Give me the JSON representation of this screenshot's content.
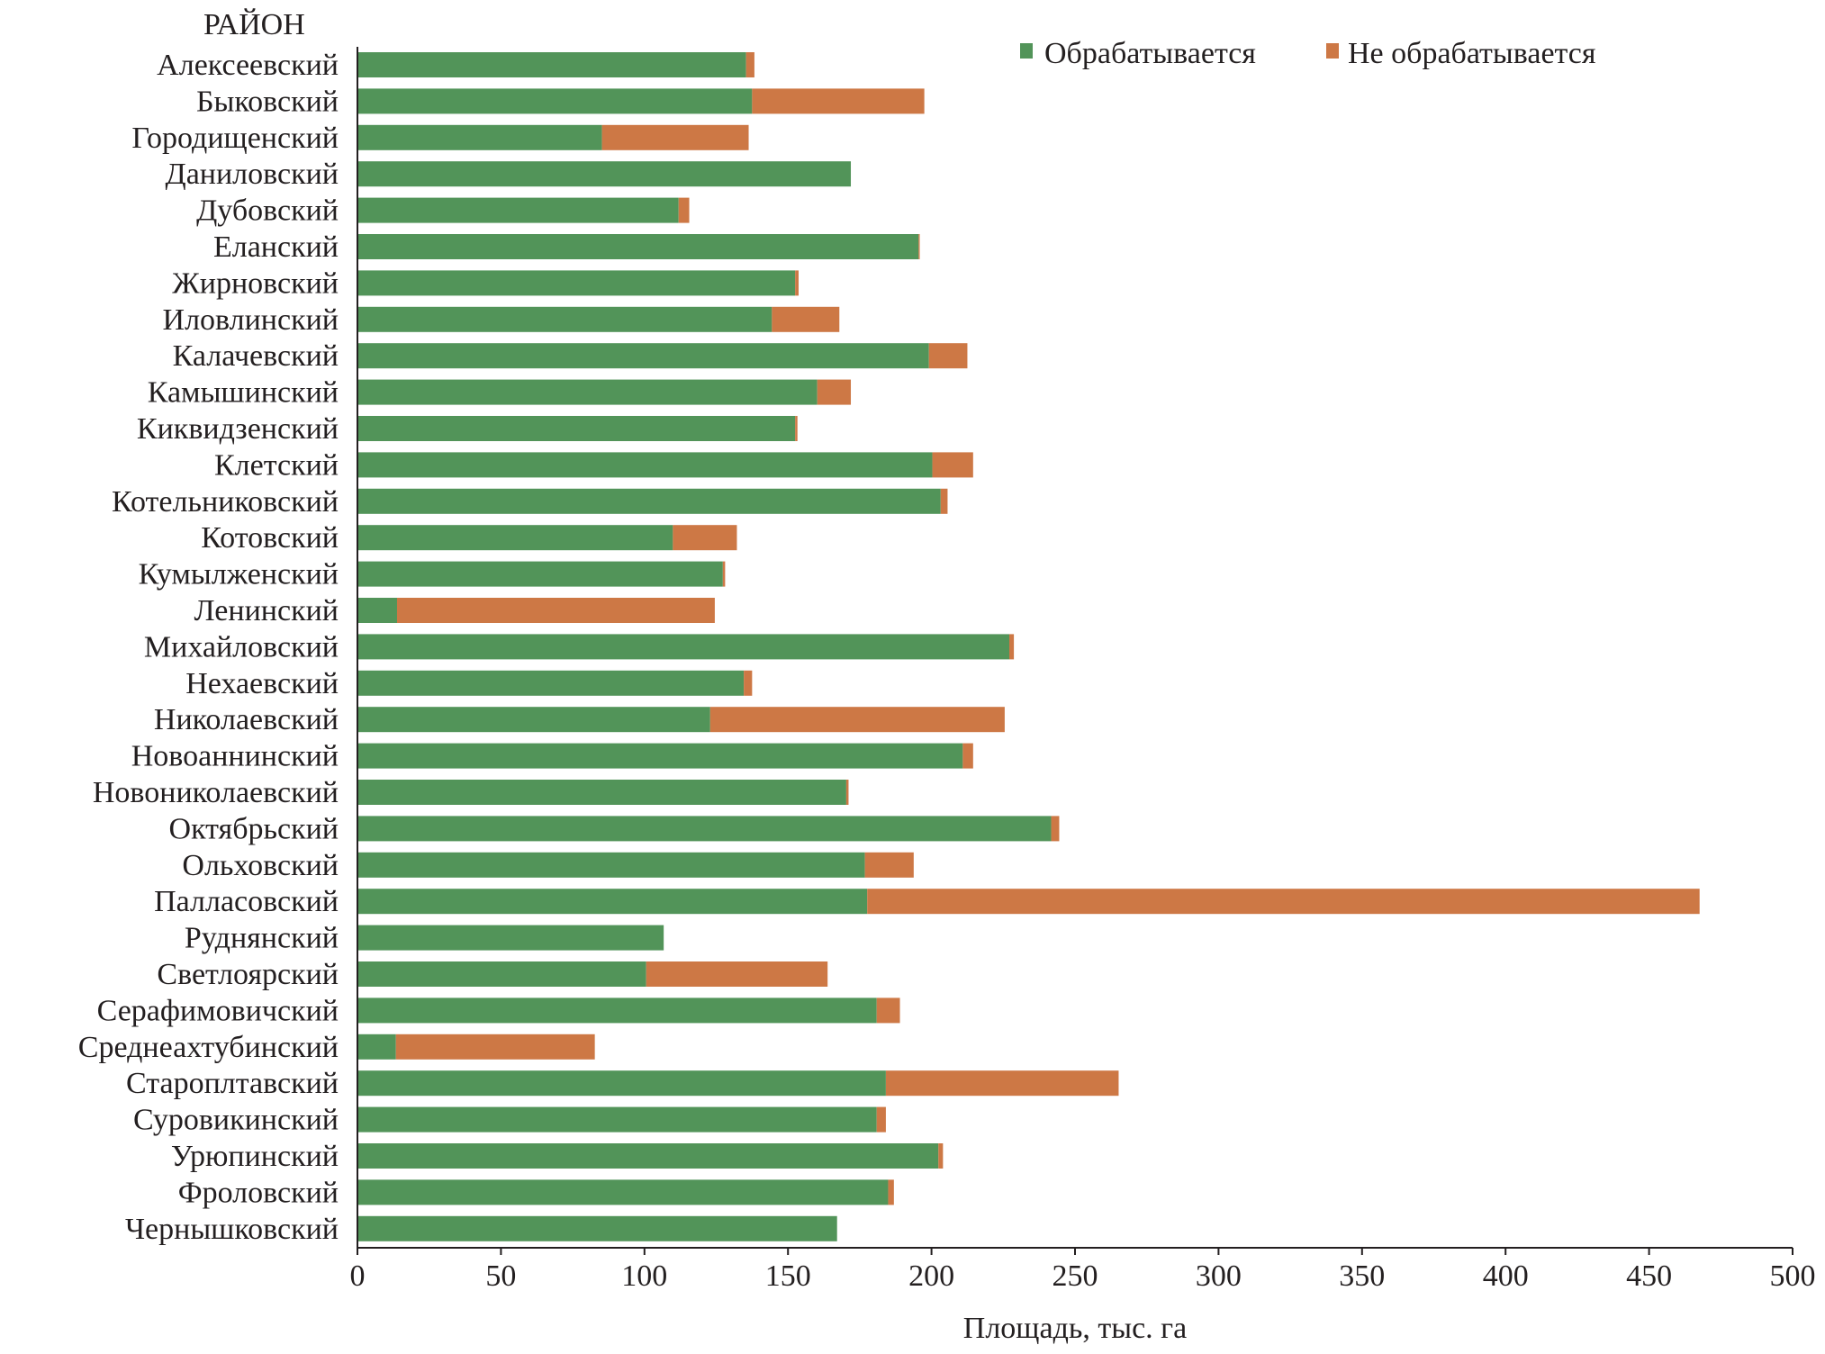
{
  "chart_data": {
    "type": "bar",
    "orientation": "horizontal",
    "stacked": true,
    "title": "",
    "ylabel": "РАЙОН",
    "xlabel": "Площадь, тыс. га",
    "xlim": [
      0,
      500
    ],
    "xticks": [
      0,
      50,
      100,
      150,
      200,
      250,
      300,
      350,
      400,
      450,
      500
    ],
    "grid": false,
    "legend_position": "top-right",
    "categories": [
      "Алексеевский",
      "Быковский",
      "Городищенский",
      "Даниловский",
      "Дубовский",
      "Еланский",
      "Жирновский",
      "Иловлинский",
      "Калачевский",
      "Камышинский",
      "Киквидзенский",
      "Клетский",
      "Котельниковский",
      "Котовский",
      "Кумылженский",
      "Ленинский",
      "Михайловский",
      "Нехаевский",
      "Николаевский",
      "Новоаннинский",
      "Новониколаевский",
      "Октябрьский",
      "Ольховский",
      "Палласовский",
      "Руднянский",
      "Светлоярский",
      "Серафимовичский",
      "Среднеахтубинский",
      "Староплтавский",
      "Суровикинский",
      "Урюпинский",
      "Фроловский",
      "Чернышковский"
    ],
    "series": [
      {
        "name": "Обрабатывается",
        "color": "#529459",
        "values": [
          135.4,
          137.5,
          85.2,
          171.9,
          111.9,
          195.5,
          152.5,
          144.4,
          199.1,
          160.2,
          152.5,
          200.3,
          203.2,
          109.9,
          127.3,
          13.8,
          227.1,
          134.6,
          122.9,
          210.9,
          170.3,
          241.7,
          176.8,
          177.6,
          106.7,
          100.6,
          180.9,
          13.4,
          184.1,
          180.9,
          202.4,
          184.9,
          167.1
        ]
      },
      {
        "name": "Не обрабатывается",
        "color": "#cd7845",
        "values": [
          2.9,
          60.0,
          51.1,
          0,
          3.7,
          0.4,
          1.2,
          23.5,
          13.4,
          11.7,
          0.8,
          14.2,
          2.4,
          22.3,
          0.8,
          110.7,
          1.6,
          2.9,
          102.6,
          3.6,
          0.8,
          2.8,
          17.0,
          290.0,
          0,
          63.2,
          8.1,
          69.3,
          81.1,
          3.2,
          1.6,
          2.0,
          0
        ]
      }
    ]
  }
}
